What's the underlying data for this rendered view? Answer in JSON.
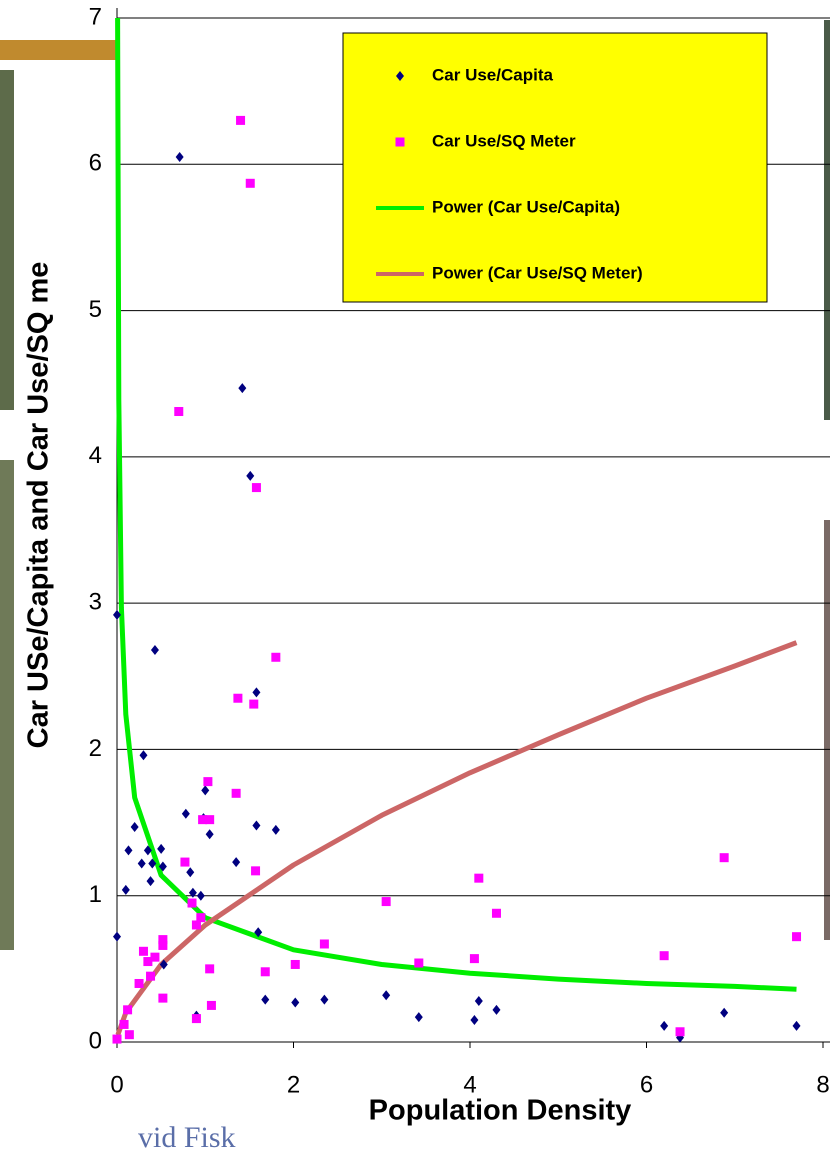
{
  "chart_data": {
    "type": "scatter",
    "x_label": "Population Density",
    "y_label": "Car USe/Capita and Car Use/SQ me",
    "xlim": [
      0,
      8
    ],
    "ylim": [
      0,
      7
    ],
    "xticks": [
      0,
      2,
      4,
      6,
      8
    ],
    "yticks": [
      0,
      1,
      2,
      3,
      4,
      5,
      6,
      7
    ],
    "grid": true,
    "legend": "upper right",
    "series": [
      {
        "name": "Car Use/Capita",
        "color": "#000080",
        "type": "scatter",
        "marker": "diamond",
        "x": [
          0.71,
          1.42,
          1.51,
          0.0,
          0.43,
          1.58,
          0.3,
          0.78,
          0.98,
          1.0,
          1.05,
          1.58,
          1.8,
          0.2,
          0.28,
          0.13,
          0.35,
          0.5,
          0.4,
          0.52,
          0.38,
          0.1,
          0.83,
          0.86,
          0.95,
          1.35,
          0.0,
          0.53,
          1.6,
          1.68,
          2.02,
          2.35,
          3.05,
          3.42,
          4.05,
          4.1,
          4.3,
          6.2,
          6.38,
          6.88,
          7.7,
          0.9
        ],
        "values": [
          6.05,
          4.47,
          3.87,
          2.92,
          2.68,
          2.39,
          1.96,
          1.56,
          1.53,
          1.72,
          1.42,
          1.48,
          1.45,
          1.47,
          1.22,
          1.31,
          1.31,
          1.32,
          1.22,
          1.2,
          1.1,
          1.04,
          1.16,
          1.02,
          1.0,
          1.23,
          0.72,
          0.53,
          0.75,
          0.29,
          0.27,
          0.29,
          0.32,
          0.17,
          0.15,
          0.28,
          0.22,
          0.11,
          0.03,
          0.2,
          0.11,
          0.18
        ]
      },
      {
        "name": "Car Use/SQ Meter",
        "color": "#ff00ff",
        "type": "scatter",
        "marker": "square",
        "x": [
          1.4,
          1.51,
          0.7,
          1.58,
          1.8,
          1.37,
          1.55,
          1.03,
          1.35,
          0.97,
          1.05,
          0.77,
          1.57,
          3.05,
          4.1,
          4.3,
          6.88,
          7.7,
          6.2,
          4.05,
          3.42,
          2.35,
          2.02,
          1.68,
          1.05,
          0.85,
          0.9,
          0.95,
          0.3,
          0.43,
          0.52,
          0.52,
          0.35,
          0.25,
          0.38,
          0.52,
          0.9,
          1.07,
          0.12,
          0.08,
          0.14,
          0.0,
          6.38
        ],
        "values": [
          6.3,
          5.87,
          4.31,
          3.79,
          2.63,
          2.35,
          2.31,
          1.78,
          1.7,
          1.52,
          1.52,
          1.23,
          1.17,
          0.96,
          1.12,
          0.88,
          1.26,
          0.72,
          0.59,
          0.57,
          0.54,
          0.67,
          0.53,
          0.48,
          0.5,
          0.95,
          0.8,
          0.85,
          0.62,
          0.58,
          0.66,
          0.7,
          0.55,
          0.4,
          0.45,
          0.3,
          0.16,
          0.25,
          0.22,
          0.12,
          0.05,
          0.02,
          0.07
        ]
      },
      {
        "name": "Power (Car Use/Capita)",
        "color": "#00ee00",
        "type": "line",
        "x": [
          0.007,
          0.02,
          0.05,
          0.1,
          0.2,
          0.5,
          1,
          2,
          3,
          4,
          5,
          6,
          7,
          7.7
        ],
        "values": [
          7.0,
          4.39,
          2.97,
          2.24,
          1.67,
          1.14,
          0.85,
          0.63,
          0.53,
          0.47,
          0.43,
          0.4,
          0.38,
          0.36
        ]
      },
      {
        "name": "Power (Car Use/SQ Meter)",
        "color": "#cc6666",
        "type": "line",
        "x": [
          0.01,
          0.1,
          0.5,
          1,
          2,
          3,
          4,
          5,
          6,
          7,
          7.7
        ],
        "values": [
          0.05,
          0.2,
          0.53,
          0.8,
          1.21,
          1.55,
          1.84,
          2.1,
          2.35,
          2.57,
          2.73
        ]
      }
    ]
  },
  "footer": "vid Fisk"
}
